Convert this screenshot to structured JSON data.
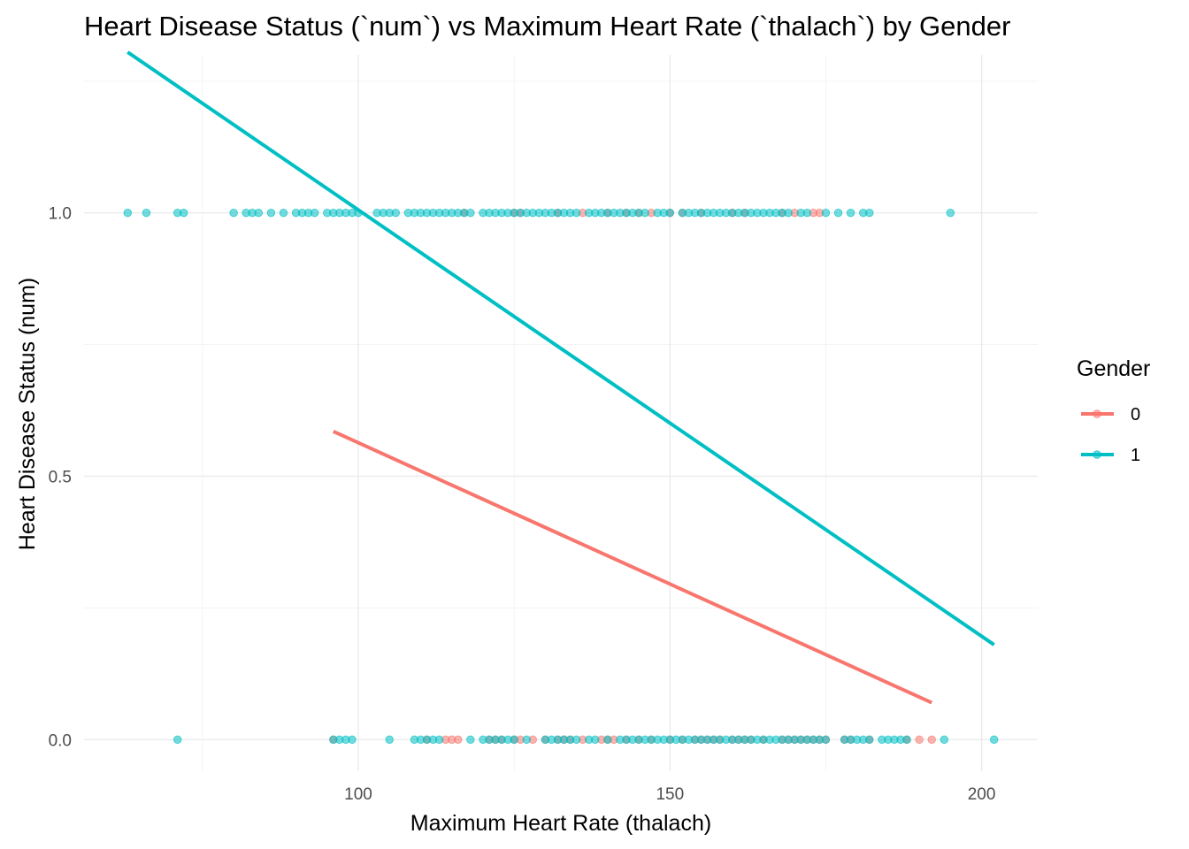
{
  "chart_data": {
    "type": "scatter",
    "title": "Heart Disease Status (`num`) vs Maximum Heart Rate (`thalach`) by Gender",
    "xlabel": "Maximum Heart Rate (thalach)",
    "ylabel": "Heart Disease Status (num)",
    "xlim": [
      56,
      209
    ],
    "ylim": [
      -0.06,
      1.3
    ],
    "x_ticks": [
      100,
      150,
      200
    ],
    "x_tick_labels": [
      "100",
      "150",
      "200"
    ],
    "y_ticks": [
      0.0,
      0.5,
      1.0
    ],
    "y_tick_labels": [
      "0.0",
      "0.5",
      "1.0"
    ],
    "grid": true,
    "legend": {
      "title": "Gender",
      "placement": "right"
    },
    "series": [
      {
        "name": "0",
        "color": "#F8766D",
        "points": [
          [
            96,
            0
          ],
          [
            111,
            0
          ],
          [
            114,
            0
          ],
          [
            115,
            0
          ],
          [
            116,
            0
          ],
          [
            121,
            0
          ],
          [
            122,
            0
          ],
          [
            123,
            0
          ],
          [
            125,
            0
          ],
          [
            126,
            0
          ],
          [
            128,
            0
          ],
          [
            130,
            0
          ],
          [
            132,
            0
          ],
          [
            133,
            0
          ],
          [
            134,
            0
          ],
          [
            136,
            0
          ],
          [
            139,
            0
          ],
          [
            140,
            0
          ],
          [
            141,
            0
          ],
          [
            143,
            0
          ],
          [
            145,
            0
          ],
          [
            147,
            0
          ],
          [
            150,
            0
          ],
          [
            152,
            0
          ],
          [
            154,
            0
          ],
          [
            155,
            0
          ],
          [
            156,
            0
          ],
          [
            157,
            0
          ],
          [
            158,
            0
          ],
          [
            160,
            0
          ],
          [
            161,
            0
          ],
          [
            162,
            0
          ],
          [
            163,
            0
          ],
          [
            165,
            0
          ],
          [
            168,
            0
          ],
          [
            169,
            0
          ],
          [
            170,
            0
          ],
          [
            171,
            0
          ],
          [
            172,
            0
          ],
          [
            173,
            0
          ],
          [
            174,
            0
          ],
          [
            175,
            0
          ],
          [
            178,
            0
          ],
          [
            179,
            0
          ],
          [
            182,
            0
          ],
          [
            188,
            0
          ],
          [
            190,
            0
          ],
          [
            192,
            0
          ],
          [
            117,
            1
          ],
          [
            125,
            1
          ],
          [
            126,
            1
          ],
          [
            132,
            1
          ],
          [
            136,
            1
          ],
          [
            140,
            1
          ],
          [
            143,
            1
          ],
          [
            145,
            1
          ],
          [
            147,
            1
          ],
          [
            150,
            1
          ],
          [
            152,
            1
          ],
          [
            155,
            1
          ],
          [
            160,
            1
          ],
          [
            162,
            1
          ],
          [
            168,
            1
          ],
          [
            170,
            1
          ],
          [
            173,
            1
          ],
          [
            174,
            1
          ]
        ],
        "fit": [
          [
            96,
            0.585
          ],
          [
            192,
            0.07
          ]
        ]
      },
      {
        "name": "1",
        "color": "#00BFC4",
        "points": [
          [
            71,
            0
          ],
          [
            96,
            0
          ],
          [
            97,
            0
          ],
          [
            98,
            0
          ],
          [
            99,
            0
          ],
          [
            105,
            0
          ],
          [
            109,
            0
          ],
          [
            110,
            0
          ],
          [
            111,
            0
          ],
          [
            112,
            0
          ],
          [
            113,
            0
          ],
          [
            118,
            0
          ],
          [
            120,
            0
          ],
          [
            121,
            0
          ],
          [
            122,
            0
          ],
          [
            123,
            0
          ],
          [
            124,
            0
          ],
          [
            125,
            0
          ],
          [
            127,
            0
          ],
          [
            130,
            0
          ],
          [
            131,
            0
          ],
          [
            132,
            0
          ],
          [
            133,
            0
          ],
          [
            134,
            0
          ],
          [
            135,
            0
          ],
          [
            137,
            0
          ],
          [
            138,
            0
          ],
          [
            140,
            0
          ],
          [
            142,
            0
          ],
          [
            143,
            0
          ],
          [
            144,
            0
          ],
          [
            145,
            0
          ],
          [
            146,
            0
          ],
          [
            147,
            0
          ],
          [
            148,
            0
          ],
          [
            149,
            0
          ],
          [
            150,
            0
          ],
          [
            151,
            0
          ],
          [
            152,
            0
          ],
          [
            153,
            0
          ],
          [
            154,
            0
          ],
          [
            155,
            0
          ],
          [
            156,
            0
          ],
          [
            157,
            0
          ],
          [
            158,
            0
          ],
          [
            159,
            0
          ],
          [
            160,
            0
          ],
          [
            161,
            0
          ],
          [
            162,
            0
          ],
          [
            163,
            0
          ],
          [
            164,
            0
          ],
          [
            165,
            0
          ],
          [
            166,
            0
          ],
          [
            167,
            0
          ],
          [
            168,
            0
          ],
          [
            169,
            0
          ],
          [
            170,
            0
          ],
          [
            171,
            0
          ],
          [
            172,
            0
          ],
          [
            173,
            0
          ],
          [
            174,
            0
          ],
          [
            175,
            0
          ],
          [
            178,
            0
          ],
          [
            179,
            0
          ],
          [
            180,
            0
          ],
          [
            181,
            0
          ],
          [
            182,
            0
          ],
          [
            184,
            0
          ],
          [
            185,
            0
          ],
          [
            186,
            0
          ],
          [
            187,
            0
          ],
          [
            188,
            0
          ],
          [
            194,
            0
          ],
          [
            202,
            0
          ],
          [
            63,
            1
          ],
          [
            66,
            1
          ],
          [
            71,
            1
          ],
          [
            72,
            1
          ],
          [
            80,
            1
          ],
          [
            82,
            1
          ],
          [
            83,
            1
          ],
          [
            84,
            1
          ],
          [
            86,
            1
          ],
          [
            88,
            1
          ],
          [
            90,
            1
          ],
          [
            91,
            1
          ],
          [
            92,
            1
          ],
          [
            93,
            1
          ],
          [
            95,
            1
          ],
          [
            96,
            1
          ],
          [
            97,
            1
          ],
          [
            98,
            1
          ],
          [
            99,
            1
          ],
          [
            100,
            1
          ],
          [
            103,
            1
          ],
          [
            104,
            1
          ],
          [
            105,
            1
          ],
          [
            106,
            1
          ],
          [
            108,
            1
          ],
          [
            109,
            1
          ],
          [
            110,
            1
          ],
          [
            111,
            1
          ],
          [
            112,
            1
          ],
          [
            113,
            1
          ],
          [
            114,
            1
          ],
          [
            115,
            1
          ],
          [
            116,
            1
          ],
          [
            117,
            1
          ],
          [
            118,
            1
          ],
          [
            120,
            1
          ],
          [
            121,
            1
          ],
          [
            122,
            1
          ],
          [
            123,
            1
          ],
          [
            124,
            1
          ],
          [
            125,
            1
          ],
          [
            126,
            1
          ],
          [
            127,
            1
          ],
          [
            128,
            1
          ],
          [
            129,
            1
          ],
          [
            130,
            1
          ],
          [
            131,
            1
          ],
          [
            132,
            1
          ],
          [
            133,
            1
          ],
          [
            134,
            1
          ],
          [
            135,
            1
          ],
          [
            137,
            1
          ],
          [
            138,
            1
          ],
          [
            139,
            1
          ],
          [
            140,
            1
          ],
          [
            141,
            1
          ],
          [
            142,
            1
          ],
          [
            143,
            1
          ],
          [
            144,
            1
          ],
          [
            145,
            1
          ],
          [
            146,
            1
          ],
          [
            148,
            1
          ],
          [
            149,
            1
          ],
          [
            150,
            1
          ],
          [
            152,
            1
          ],
          [
            153,
            1
          ],
          [
            154,
            1
          ],
          [
            155,
            1
          ],
          [
            156,
            1
          ],
          [
            157,
            1
          ],
          [
            158,
            1
          ],
          [
            159,
            1
          ],
          [
            160,
            1
          ],
          [
            161,
            1
          ],
          [
            162,
            1
          ],
          [
            163,
            1
          ],
          [
            164,
            1
          ],
          [
            165,
            1
          ],
          [
            166,
            1
          ],
          [
            167,
            1
          ],
          [
            168,
            1
          ],
          [
            169,
            1
          ],
          [
            171,
            1
          ],
          [
            172,
            1
          ],
          [
            175,
            1
          ],
          [
            177,
            1
          ],
          [
            179,
            1
          ],
          [
            181,
            1
          ],
          [
            182,
            1
          ],
          [
            195,
            1
          ]
        ],
        "fit": [
          [
            63,
            1.305
          ],
          [
            202,
            0.18
          ]
        ]
      }
    ]
  }
}
